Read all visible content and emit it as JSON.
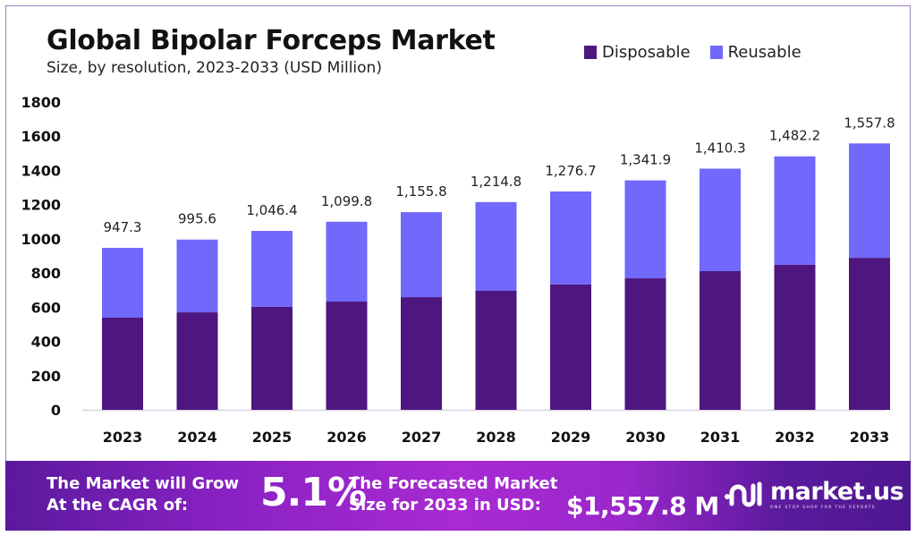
{
  "header": {
    "title": "Global Bipolar Forceps Market",
    "subtitle": "Size, by resolution, 2023-2033 (USD Million)"
  },
  "legend": [
    {
      "label": "Disposable",
      "color": "#4e1780"
    },
    {
      "label": "Reusable",
      "color": "#7268fb"
    }
  ],
  "chart_data": {
    "type": "bar",
    "stacked": true,
    "title": "Global Bipolar Forceps Market",
    "subtitle": "Size, by resolution, 2023-2033 (USD Million)",
    "xlabel": "",
    "ylabel": "",
    "ylim": [
      0,
      1800
    ],
    "yticks": [
      0,
      200,
      400,
      600,
      800,
      1000,
      1200,
      1400,
      1600,
      1800
    ],
    "grid": false,
    "legend_position": "top-right",
    "categories": [
      "2023",
      "2024",
      "2025",
      "2026",
      "2027",
      "2028",
      "2029",
      "2030",
      "2031",
      "2032",
      "2033"
    ],
    "series": [
      {
        "name": "Disposable",
        "color": "#4e1780",
        "values": [
          539,
          570,
          602,
          633,
          659,
          696,
          733,
          769,
          811,
          848,
          889
        ]
      },
      {
        "name": "Reusable",
        "color": "#7268fb",
        "values": [
          408.3,
          425.6,
          444.4,
          466.8,
          496.8,
          518.8,
          543.7,
          572.9,
          599.3,
          634.2,
          668.8
        ]
      }
    ],
    "totals": [
      947.3,
      995.6,
      1046.4,
      1099.8,
      1155.8,
      1214.8,
      1276.7,
      1341.9,
      1410.3,
      1482.2,
      1557.8
    ],
    "total_labels": [
      "947.3",
      "995.6",
      "1,046.4",
      "1,099.8",
      "1,155.8",
      "1,214.8",
      "1,276.7",
      "1,341.9",
      "1,410.3",
      "1,482.2",
      "1,557.8"
    ]
  },
  "banner": {
    "cagr_text_line1": "The Market will Grow",
    "cagr_text_line2": "At the CAGR of:",
    "cagr_value": "5.1%",
    "forecast_text_line1": "The Forecasted Market",
    "forecast_text_line2": "Size for 2033 in USD:",
    "forecast_value": "$1,557.8 M",
    "logo_name": "market.us",
    "logo_tagline": "ONE STOP SHOP FOR THE REPORTS"
  }
}
